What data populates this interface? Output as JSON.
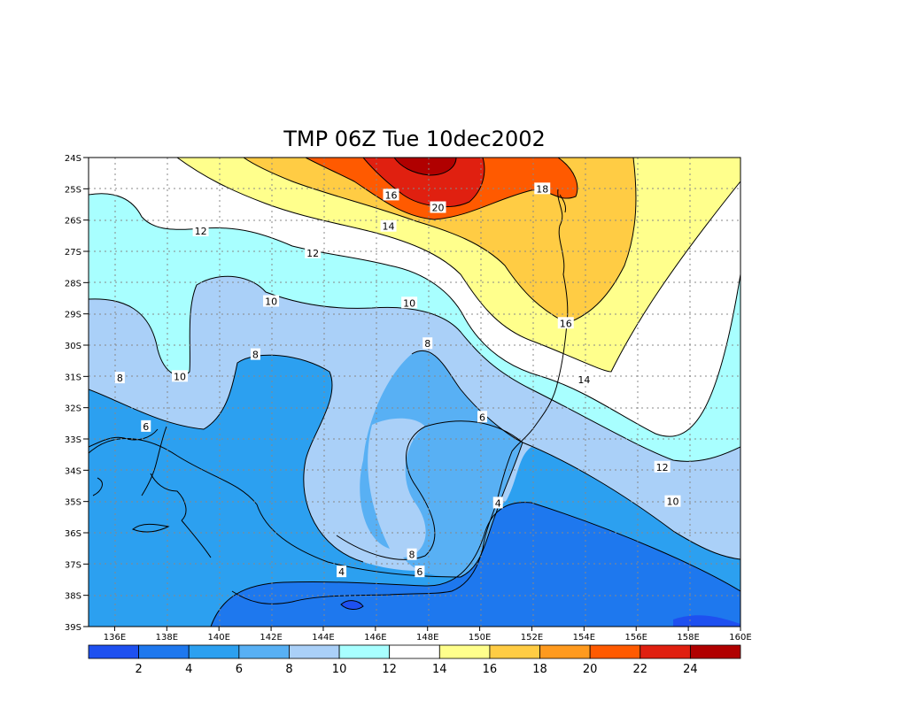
{
  "title": "TMP 06Z Tue 10dec2002",
  "lon_ticks": [
    "136E",
    "138E",
    "140E",
    "142E",
    "144E",
    "146E",
    "148E",
    "150E",
    "152E",
    "154E",
    "156E",
    "158E",
    "160E"
  ],
  "lat_ticks": [
    "24S",
    "25S",
    "26S",
    "27S",
    "28S",
    "29S",
    "30S",
    "31S",
    "32S",
    "33S",
    "34S",
    "35S",
    "36S",
    "37S",
    "38S",
    "39S"
  ],
  "colorbar": {
    "colors": [
      "#1e50f0",
      "#1e78ee",
      "#2ca0f0",
      "#58b0f4",
      "#aad0f8",
      "#a8ffff",
      "#ffffff",
      "#ffff8c",
      "#ffcc44",
      "#ff9a1e",
      "#ff5a00",
      "#e02010",
      "#b00000"
    ],
    "labels": [
      "2",
      "4",
      "6",
      "8",
      "10",
      "12",
      "14",
      "16",
      "18",
      "20",
      "22",
      "24"
    ]
  },
  "contour_labels": [
    {
      "text": "12",
      "lon": 139.3,
      "lat": -26.35
    },
    {
      "text": "16",
      "lon": 146.6,
      "lat": -25.2
    },
    {
      "text": "14",
      "lon": 146.5,
      "lat": -26.2
    },
    {
      "text": "20",
      "lon": 148.4,
      "lat": -25.6
    },
    {
      "text": "18",
      "lon": 152.4,
      "lat": -25.0
    },
    {
      "text": "12",
      "lon": 143.6,
      "lat": -27.05
    },
    {
      "text": "10",
      "lon": 142.0,
      "lat": -28.6
    },
    {
      "text": "10",
      "lon": 147.3,
      "lat": -28.65
    },
    {
      "text": "16",
      "lon": 153.3,
      "lat": -29.3
    },
    {
      "text": "8",
      "lon": 141.4,
      "lat": -30.3
    },
    {
      "text": "8",
      "lon": 148.0,
      "lat": -29.95
    },
    {
      "text": "10",
      "lon": 138.5,
      "lat": -31.0
    },
    {
      "text": "8",
      "lon": 136.2,
      "lat": -31.05
    },
    {
      "text": "14",
      "lon": 154.0,
      "lat": -31.1
    },
    {
      "text": "6",
      "lon": 150.1,
      "lat": -32.3
    },
    {
      "text": "6",
      "lon": 137.2,
      "lat": -32.6
    },
    {
      "text": "12",
      "lon": 157.0,
      "lat": -33.9
    },
    {
      "text": "4",
      "lon": 150.7,
      "lat": -35.05
    },
    {
      "text": "10",
      "lon": 157.4,
      "lat": -35.0
    },
    {
      "text": "8",
      "lon": 147.4,
      "lat": -36.7
    },
    {
      "text": "6",
      "lon": 147.7,
      "lat": -37.25
    },
    {
      "text": "4",
      "lon": 144.7,
      "lat": -37.25
    }
  ]
}
